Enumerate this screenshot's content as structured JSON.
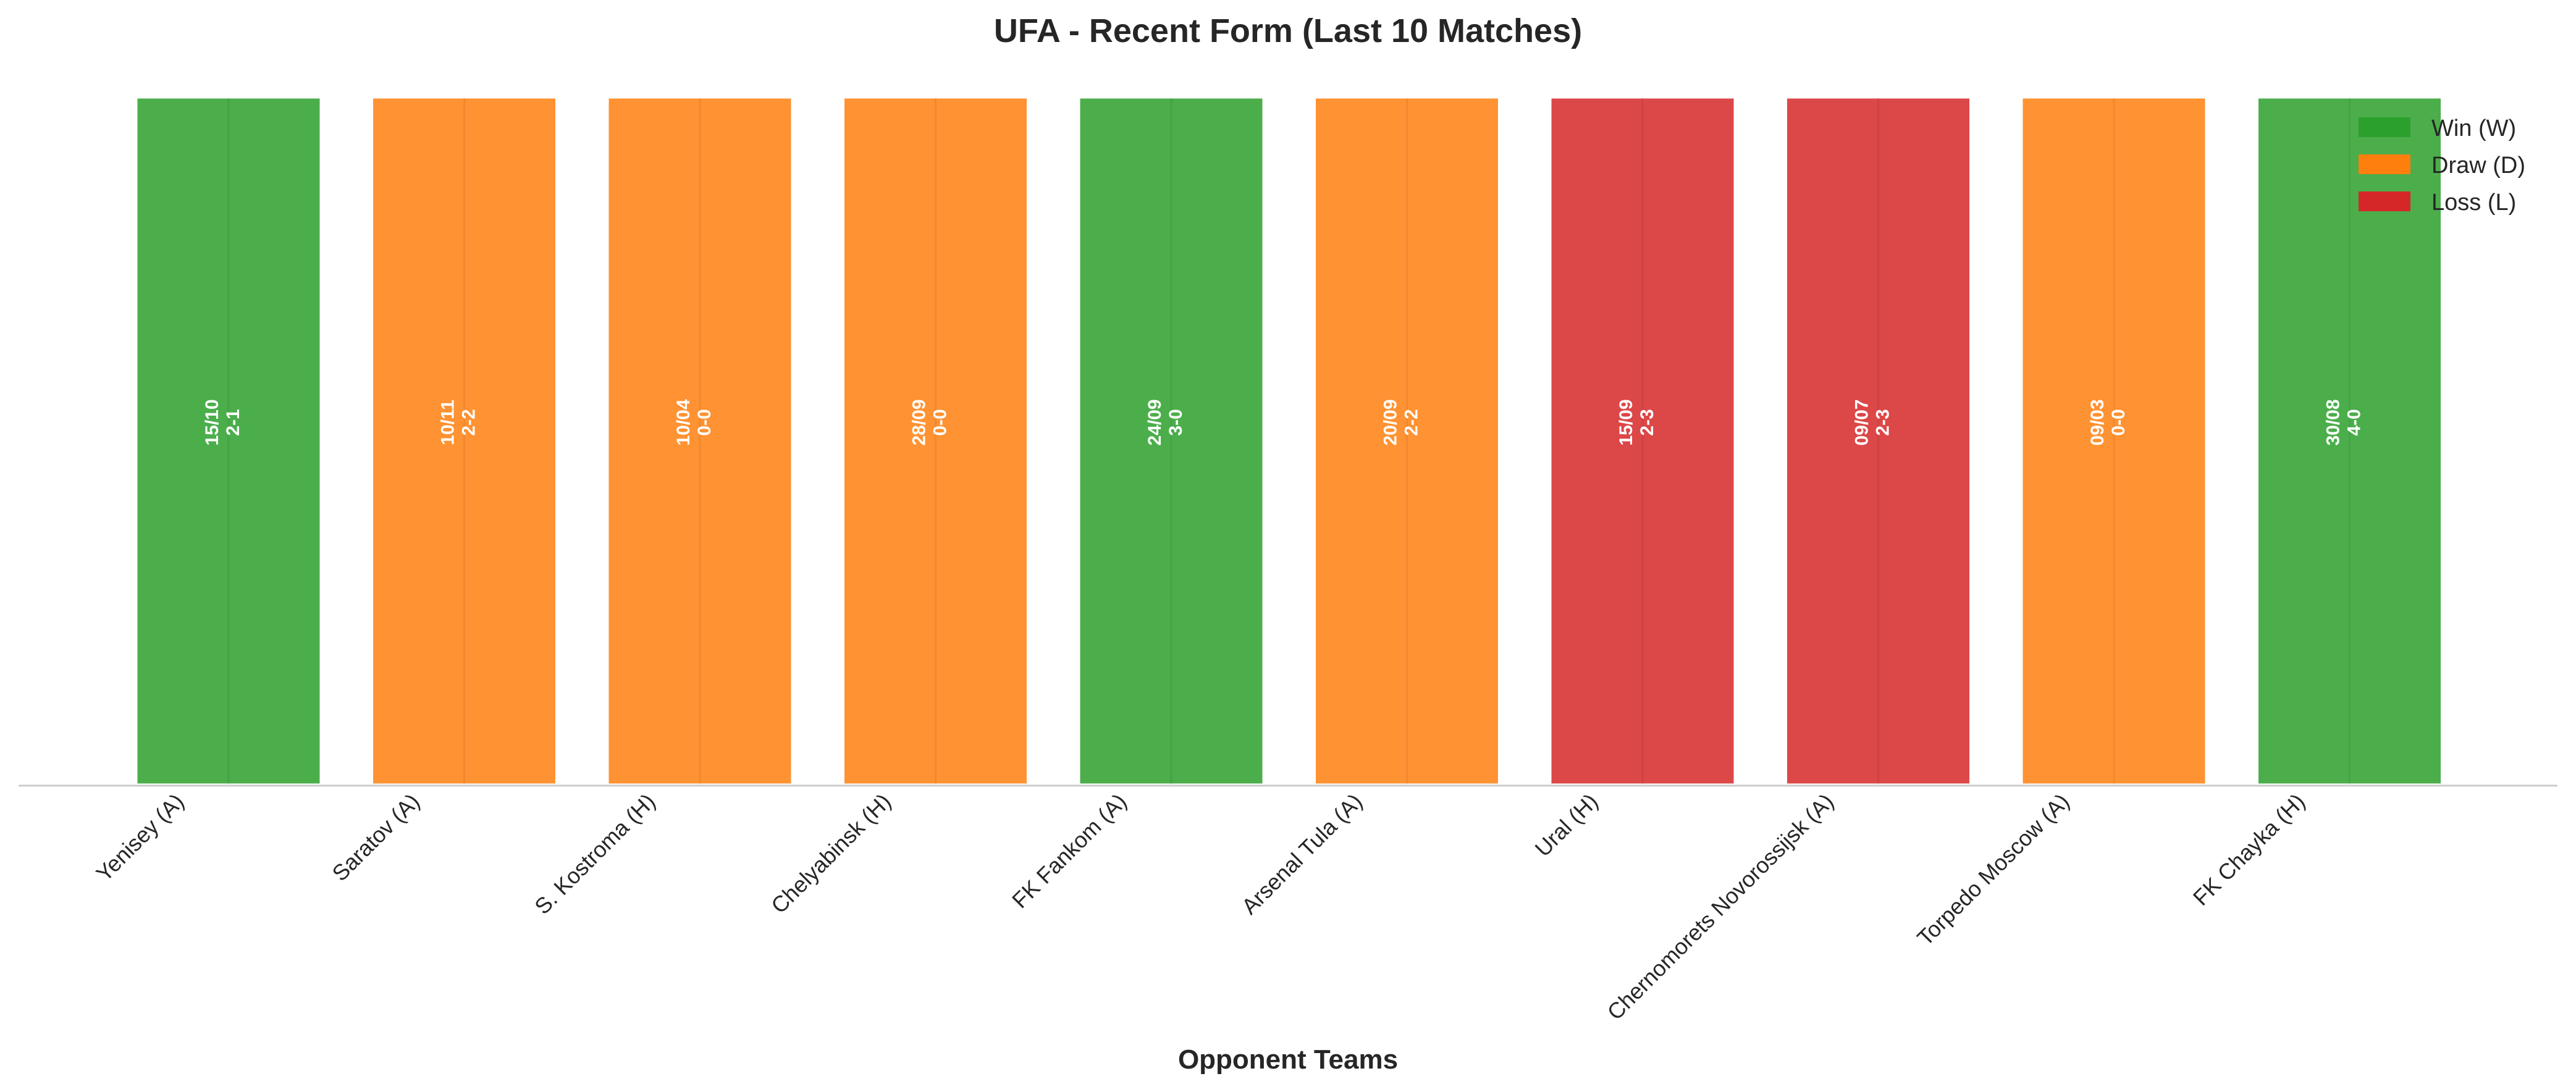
{
  "chart_data": {
    "type": "bar",
    "title": "UFA - Recent Form (Last 10 Matches)",
    "xlabel": "Opponent Teams",
    "ylabel": "",
    "categories": [
      "Yenisey (A)",
      "Saratov (A)",
      "S. Kostroma (H)",
      "Chelyabinsk (H)",
      "FK Fankom (A)",
      "Arsenal Tula (A)",
      "Ural (H)",
      "Chernomorets Novorossijsk (A)",
      "Torpedo Moscow (A)",
      "FK Chayka (H)"
    ],
    "results": [
      "W",
      "D",
      "D",
      "D",
      "W",
      "D",
      "L",
      "L",
      "D",
      "W"
    ],
    "dates": [
      "15/10",
      "10/11",
      "10/04",
      "28/09",
      "24/09",
      "20/09",
      "15/09",
      "09/07",
      "09/03",
      "30/08"
    ],
    "scores": [
      "2-1",
      "2-2",
      "0-0",
      "0-0",
      "3-0",
      "2-2",
      "2-3",
      "2-3",
      "0-0",
      "4-0"
    ],
    "values": [
      1,
      1,
      1,
      1,
      1,
      1,
      1,
      1,
      1,
      1
    ],
    "ylim": [
      0,
      1
    ],
    "grid": false,
    "legend_position": "top-right",
    "legend": [
      {
        "key": "W",
        "label": "Win (W)",
        "color": "#2ca02c"
      },
      {
        "key": "D",
        "label": "Draw (D)",
        "color": "#ff7f0e"
      },
      {
        "key": "L",
        "label": "Loss (L)",
        "color": "#d62728"
      }
    ]
  }
}
